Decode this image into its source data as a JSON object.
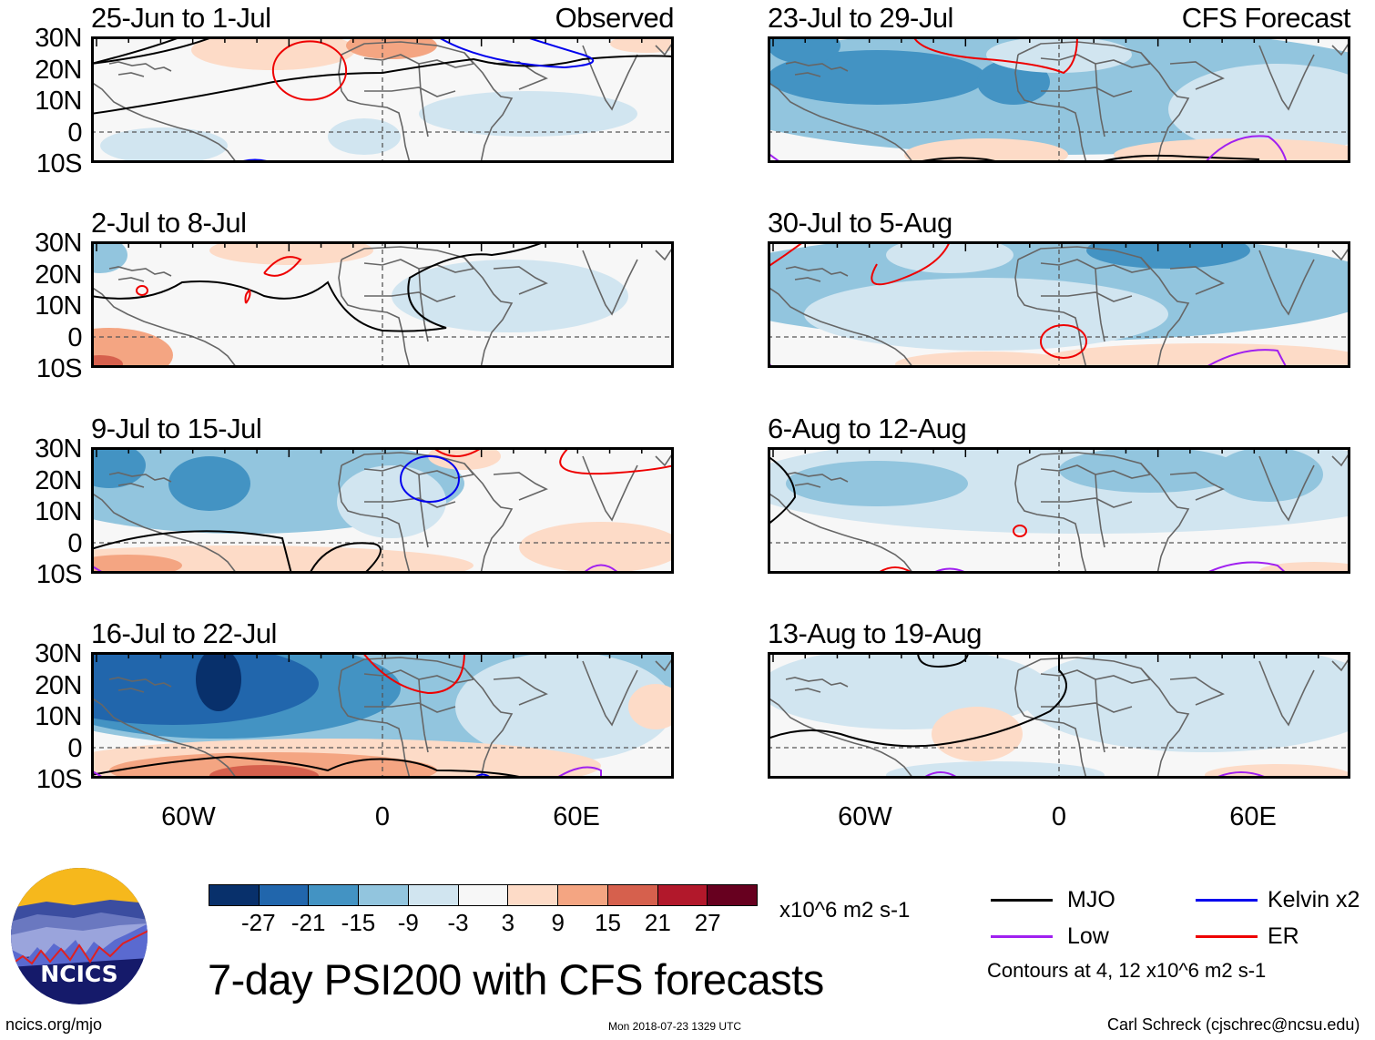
{
  "figure": {
    "main_title": "7-day PSI200 with CFS forecasts",
    "observed_tag": "Observed",
    "forecast_tag": "CFS Forecast"
  },
  "axes": {
    "lat_labels": [
      "30N",
      "20N",
      "10N",
      "0",
      "10S"
    ],
    "lon_labels": [
      "60W",
      "0",
      "60E"
    ],
    "lat_range": [
      -10,
      30
    ],
    "lon_range": [
      -90,
      90
    ]
  },
  "panels": {
    "observed": [
      {
        "period": "25-Jun to 1-Jul",
        "dominant_anomaly": "weak negative/positive mix",
        "contours": [
          "MJO",
          "ER",
          "Kelvin x2"
        ]
      },
      {
        "period": "2-Jul to 8-Jul",
        "dominant_anomaly": "near neutral",
        "contours": [
          "MJO",
          "ER"
        ]
      },
      {
        "period": "9-Jul to 15-Jul",
        "dominant_anomaly": "negative over Atlantic",
        "contours": [
          "MJO",
          "ER",
          "Kelvin x2",
          "Low"
        ]
      },
      {
        "period": "16-Jul to 22-Jul",
        "dominant_anomaly": "strong negative over Atlantic",
        "contours": [
          "MJO",
          "ER",
          "Kelvin x2",
          "Low"
        ]
      }
    ],
    "forecast": [
      {
        "period": "23-Jul to 29-Jul",
        "dominant_anomaly": "negative over Atlantic/Africa",
        "contours": [
          "MJO",
          "ER",
          "Low"
        ]
      },
      {
        "period": "30-Jul to 5-Aug",
        "dominant_anomaly": "negative over Atlantic/Africa",
        "contours": [
          "ER",
          "Low"
        ]
      },
      {
        "period": "6-Aug to 12-Aug",
        "dominant_anomaly": "weak negative",
        "contours": [
          "MJO",
          "ER",
          "Low"
        ]
      },
      {
        "period": "13-Aug to 19-Aug",
        "dominant_anomaly": "weak negative",
        "contours": [
          "MJO",
          "Low"
        ]
      }
    ]
  },
  "colorbar": {
    "units": "x10^6 m2 s-1",
    "ticks": [
      "-27",
      "-21",
      "-15",
      "-9",
      "-3",
      "3",
      "9",
      "15",
      "21",
      "27"
    ],
    "colors": [
      "#08306b",
      "#2166ac",
      "#4393c3",
      "#92c5de",
      "#d1e5f0",
      "#f7f7f7",
      "#fddbc7",
      "#f4a582",
      "#d6604d",
      "#b2182b",
      "#67001f"
    ]
  },
  "legend": {
    "items": [
      {
        "label": "MJO",
        "color": "#000000"
      },
      {
        "label": "Kelvin x2",
        "color": "#0000ee"
      },
      {
        "label": "Low",
        "color": "#a020f0"
      },
      {
        "label": "ER",
        "color": "#ee0000"
      }
    ],
    "contours_note": "Contours at 4, 12 x10^6 m2 s-1"
  },
  "logo": {
    "text": "NCICS"
  },
  "footer": {
    "website": "ncics.org/mjo",
    "timestamp": "Mon 2018-07-23 1329 UTC",
    "credit": "Carl Schreck (cjschrec@ncsu.edu)"
  },
  "map_colors": {
    "coast": "#666666",
    "equator": "#555555",
    "blue1": "#d1e5f0",
    "blue2": "#92c5de",
    "blue3": "#4393c3",
    "blue4": "#2166ac",
    "blue5": "#08306b",
    "red1": "#fddbc7",
    "red2": "#f4a582",
    "red3": "#d6604d"
  }
}
